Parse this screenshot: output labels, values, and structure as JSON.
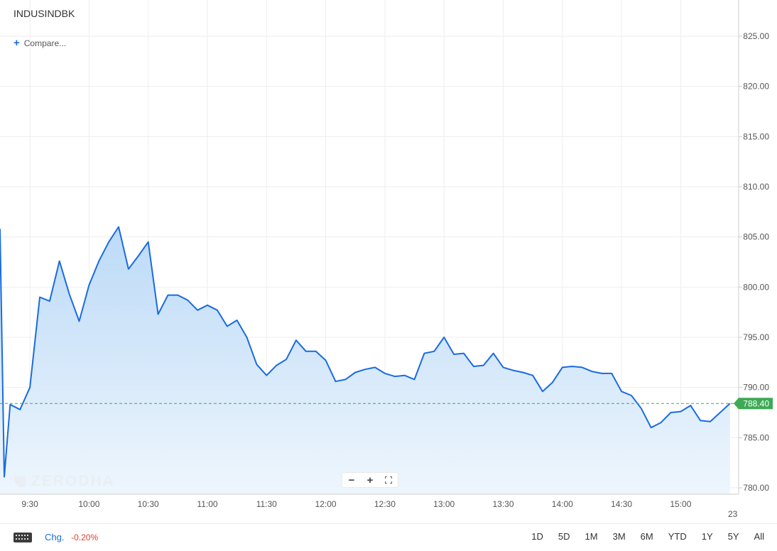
{
  "symbol": "INDUSINDBK",
  "compare_label": "Compare...",
  "watermark": "ZERODHA",
  "zoom_controls": {
    "minus": "−",
    "plus": "+",
    "fit": "⛶"
  },
  "footer": {
    "change_label": "Chg.",
    "change_value": "-0.20%",
    "ranges": [
      "1D",
      "5D",
      "1M",
      "3M",
      "6M",
      "YTD",
      "1Y",
      "5Y",
      "All"
    ]
  },
  "colors": {
    "line": "#1a6be0",
    "fill_top": "#bcdaf7",
    "fill_bottom": "#eef6fd",
    "last_price_tag": "#3daa55",
    "grid": "#eeeeee",
    "negative": "#e0412f"
  },
  "chart_data": {
    "type": "area",
    "title": "INDUSINDBK",
    "ylim": [
      780,
      828
    ],
    "y_ticks": [
      "780.00",
      "785.00",
      "790.00",
      "795.00",
      "800.00",
      "805.00",
      "810.00",
      "815.00",
      "820.00",
      "825.00"
    ],
    "x_ticks": [
      "9:30",
      "10:00",
      "10:30",
      "11:00",
      "11:30",
      "12:00",
      "12:30",
      "13:00",
      "13:30",
      "14:00",
      "14:30",
      "15:00",
      "23"
    ],
    "last_price": "788.40",
    "last_price_value": 788.4,
    "grid": true,
    "series": [
      {
        "x": [
          "09:15",
          "09:17",
          "09:20",
          "09:25",
          "09:30",
          "09:35",
          "09:40",
          "09:45",
          "09:50",
          "09:55",
          "10:00",
          "10:05",
          "10:10",
          "10:15",
          "10:20",
          "10:25",
          "10:30",
          "10:35",
          "10:40",
          "10:45",
          "10:50",
          "10:55",
          "11:00",
          "11:05",
          "11:10",
          "11:15",
          "11:20",
          "11:25",
          "11:30",
          "11:35",
          "11:40",
          "11:45",
          "11:50",
          "11:55",
          "12:00",
          "12:05",
          "12:10",
          "12:15",
          "12:20",
          "12:25",
          "12:30",
          "12:35",
          "12:40",
          "12:45",
          "12:50",
          "12:55",
          "13:00",
          "13:05",
          "13:10",
          "13:15",
          "13:20",
          "13:25",
          "13:30",
          "13:35",
          "13:40",
          "13:45",
          "13:50",
          "13:55",
          "14:00",
          "14:05",
          "14:10",
          "14:15",
          "14:20",
          "14:25",
          "14:30",
          "14:35",
          "14:40",
          "14:45",
          "14:50",
          "14:55",
          "15:00",
          "15:05",
          "15:10",
          "15:15",
          "15:20",
          "15:25"
        ],
        "values": [
          805.8,
          781.1,
          788.3,
          787.8,
          790.0,
          799.0,
          798.6,
          802.6,
          799.3,
          796.6,
          800.2,
          802.6,
          804.5,
          806.0,
          801.8,
          803.1,
          804.5,
          797.3,
          799.2,
          799.2,
          798.7,
          797.7,
          798.2,
          797.7,
          796.1,
          796.7,
          795.0,
          792.3,
          791.2,
          792.2,
          792.8,
          794.7,
          793.6,
          793.6,
          792.7,
          790.6,
          790.8,
          791.5,
          791.8,
          792.0,
          791.4,
          791.1,
          791.2,
          790.8,
          793.4,
          793.6,
          795.0,
          793.3,
          793.4,
          792.1,
          792.2,
          793.4,
          792.0,
          791.7,
          791.5,
          791.2,
          789.6,
          790.5,
          792.0,
          792.1,
          792.0,
          791.6,
          791.4,
          791.4,
          789.6,
          789.2,
          787.9,
          786.0,
          786.5,
          787.5,
          787.6,
          788.2,
          786.7,
          786.6,
          787.5,
          788.4
        ]
      }
    ]
  }
}
